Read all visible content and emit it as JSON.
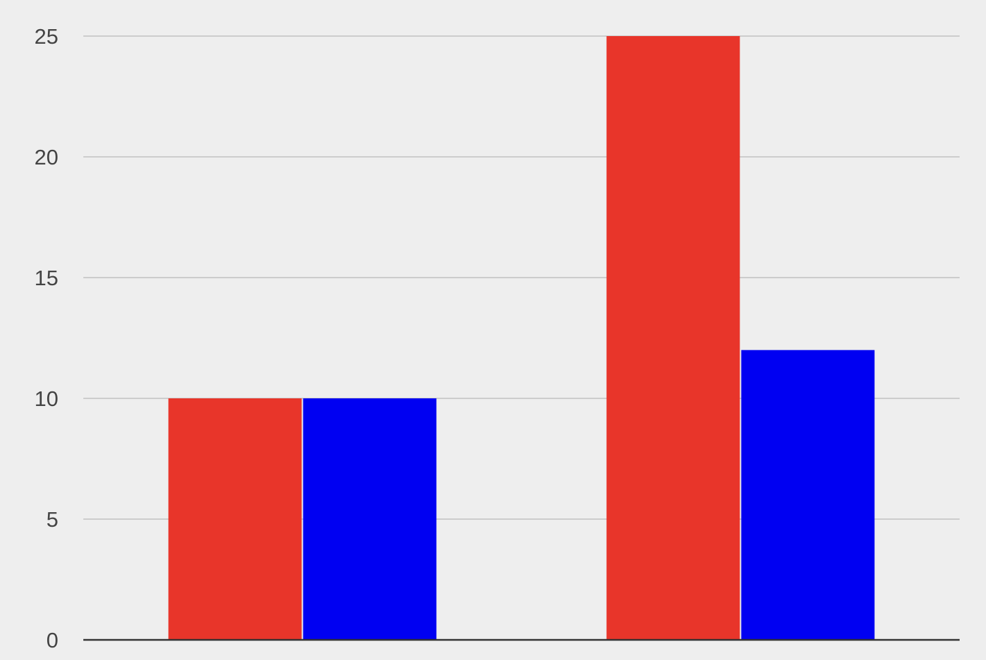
{
  "chart_data": {
    "type": "bar",
    "categories": [
      "",
      ""
    ],
    "series": [
      {
        "color": "#e8352a",
        "values": [
          10,
          25
        ]
      },
      {
        "color": "#0000f2",
        "values": [
          10,
          12
        ]
      }
    ],
    "title": "",
    "xlabel": "",
    "ylabel": "",
    "ylim": [
      0,
      25
    ],
    "yticks": [
      "0",
      "5",
      "10",
      "15",
      "20",
      "25"
    ],
    "grid": true,
    "legend": "none"
  },
  "colors": {
    "background": "#eeeeee",
    "grid": "#cccccc",
    "baseline": "#333333",
    "tick_label": "#444444"
  }
}
